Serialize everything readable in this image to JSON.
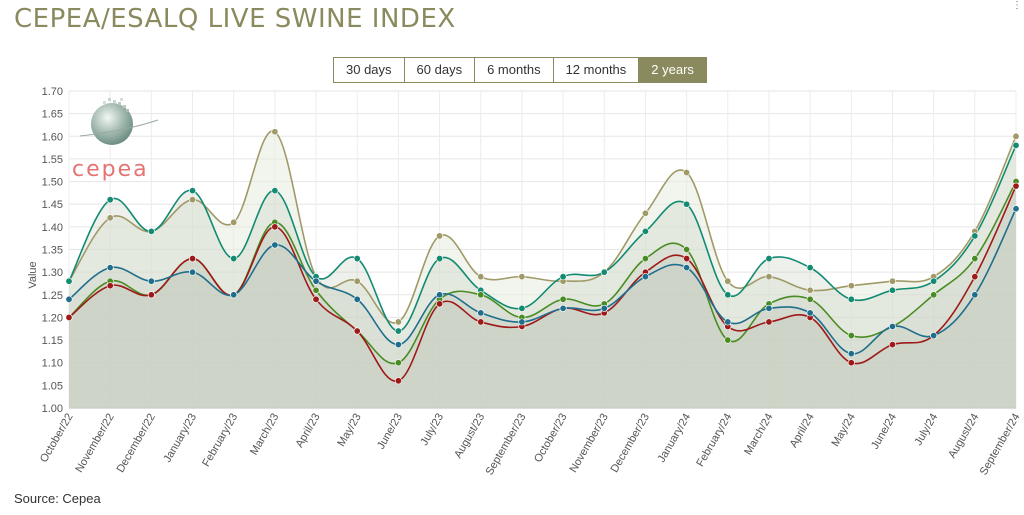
{
  "header": {
    "title": "CEPEA/ESALQ LIVE SWINE INDEX",
    "corner_mark": "⋮"
  },
  "range_buttons": [
    {
      "label": "30 days",
      "active": false
    },
    {
      "label": "60 days",
      "active": false
    },
    {
      "label": "6 months",
      "active": false
    },
    {
      "label": "12 months",
      "active": false
    },
    {
      "label": "2 years",
      "active": true
    }
  ],
  "logo": {
    "text": "cepea"
  },
  "footer": {
    "source": "Source: Cepea"
  },
  "colors": {
    "accent": "#8a8a5e",
    "series": [
      "#a09a68",
      "#138a72",
      "#4a8c24",
      "#9e1a1a",
      "#1f6e8c"
    ],
    "area_fill": "#c3c9bc",
    "logo_text": "#e57373"
  },
  "chart_data": {
    "type": "area",
    "title": "",
    "xlabel": "",
    "ylabel": "Value",
    "ylim": [
      1.0,
      1.7
    ],
    "yticks": [
      "1.00",
      "1.05",
      "1.10",
      "1.15",
      "1.20",
      "1.25",
      "1.30",
      "1.35",
      "1.40",
      "1.45",
      "1.50",
      "1.55",
      "1.60",
      "1.65",
      "1.70"
    ],
    "grid": true,
    "legend": "none",
    "categories": [
      "October/22",
      "November/22",
      "December/22",
      "January/23",
      "February/23",
      "March/23",
      "April/23",
      "May/23",
      "June/23",
      "July/23",
      "August/23",
      "September/23",
      "October/23",
      "November/23",
      "December/23",
      "January/24",
      "February/24",
      "March/24",
      "April/24",
      "May/24",
      "June/24",
      "July/24",
      "August/24",
      "September/24"
    ],
    "series": [
      {
        "values": [
          1.28,
          1.42,
          1.39,
          1.46,
          1.41,
          1.61,
          1.29,
          1.28,
          1.19,
          1.38,
          1.29,
          1.29,
          1.28,
          1.3,
          1.43,
          1.52,
          1.28,
          1.29,
          1.26,
          1.27,
          1.28,
          1.29,
          1.39,
          1.6
        ]
      },
      {
        "values": [
          1.28,
          1.46,
          1.39,
          1.48,
          1.33,
          1.48,
          1.29,
          1.33,
          1.17,
          1.33,
          1.26,
          1.22,
          1.29,
          1.3,
          1.39,
          1.45,
          1.25,
          1.33,
          1.31,
          1.24,
          1.26,
          1.28,
          1.38,
          1.58
        ]
      },
      {
        "values": [
          1.2,
          1.28,
          1.25,
          1.33,
          1.25,
          1.41,
          1.26,
          1.17,
          1.1,
          1.24,
          1.25,
          1.2,
          1.24,
          1.23,
          1.33,
          1.35,
          1.15,
          1.23,
          1.24,
          1.16,
          1.18,
          1.25,
          1.33,
          1.5
        ]
      },
      {
        "values": [
          1.2,
          1.27,
          1.25,
          1.33,
          1.25,
          1.4,
          1.24,
          1.17,
          1.06,
          1.23,
          1.19,
          1.18,
          1.22,
          1.21,
          1.3,
          1.33,
          1.18,
          1.19,
          1.2,
          1.1,
          1.14,
          1.16,
          1.29,
          1.49
        ]
      },
      {
        "values": [
          1.24,
          1.31,
          1.28,
          1.3,
          1.25,
          1.36,
          1.28,
          1.24,
          1.14,
          1.25,
          1.21,
          1.19,
          1.22,
          1.22,
          1.29,
          1.31,
          1.19,
          1.22,
          1.21,
          1.12,
          1.18,
          1.16,
          1.25,
          1.44
        ]
      }
    ]
  }
}
